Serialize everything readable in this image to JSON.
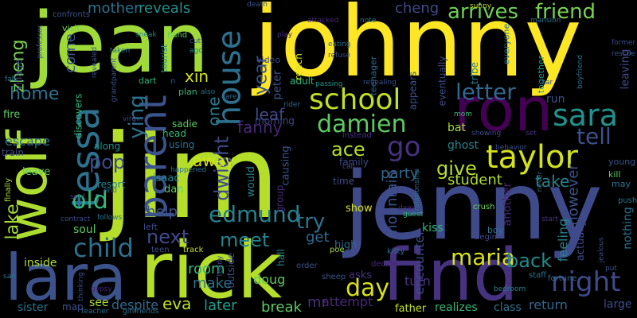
{
  "words": [
    {
      "text": "jim",
      "color": "#b5de2b"
    },
    {
      "text": "johnny",
      "color": "#fde725"
    },
    {
      "text": "jenny",
      "color": "#3e4a89"
    },
    {
      "text": "rick",
      "color": "#b5de2b"
    },
    {
      "text": "jean",
      "color": "#a0da39"
    },
    {
      "text": "find",
      "color": "#46327e"
    },
    {
      "text": "lara",
      "color": "#3b528b"
    },
    {
      "text": "ron",
      "color": "#440154"
    },
    {
      "text": "wolf",
      "color": "#addc30"
    },
    {
      "text": "parent",
      "color": "#3b528b"
    },
    {
      "text": "house",
      "color": "#2d708e"
    },
    {
      "text": "tessa",
      "color": "#2c728e"
    },
    {
      "text": "school",
      "color": "#c2df23"
    },
    {
      "text": "sara",
      "color": "#21918c"
    },
    {
      "text": "taylor",
      "color": "#d2e21b"
    },
    {
      "text": "night",
      "color": "#3e4a89"
    },
    {
      "text": "child",
      "color": "#2d708e"
    },
    {
      "text": "go",
      "color": "#46327e"
    },
    {
      "text": "day",
      "color": "#d8e219"
    },
    {
      "text": "maria",
      "color": "#d8e219"
    },
    {
      "text": "damien",
      "color": "#5ec962"
    },
    {
      "text": "letter",
      "color": "#31688e"
    },
    {
      "text": "edmund",
      "color": "#26828e"
    },
    {
      "text": "old",
      "color": "#35b779"
    },
    {
      "text": "arrives",
      "color": "#6ece58"
    },
    {
      "text": "friend",
      "color": "#7ad151"
    },
    {
      "text": "meet",
      "color": "#26828e"
    },
    {
      "text": "tell",
      "color": "#3b528b"
    },
    {
      "text": "next",
      "color": "#3e4a89"
    },
    {
      "text": "dwight",
      "color": "#3e4a89"
    },
    {
      "text": "try",
      "color": "#2c728e"
    },
    {
      "text": "ace",
      "color": "#b5de2b"
    },
    {
      "text": "pop",
      "color": "#3e4a89"
    },
    {
      "text": "ying",
      "color": "#2d708e"
    },
    {
      "text": "give",
      "color": "#b5de2b"
    },
    {
      "text": "back",
      "color": "#238a8d"
    },
    {
      "text": "year",
      "color": "#3b528b"
    },
    {
      "text": "home",
      "color": "#2c728e"
    },
    {
      "text": "mountain",
      "color": "#3b528b"
    },
    {
      "text": "lake",
      "color": "#a0da39"
    },
    {
      "text": "party",
      "color": "#31688e"
    },
    {
      "text": "zheng",
      "color": "#7ad151"
    },
    {
      "text": "later",
      "color": "#1f9e89"
    },
    {
      "text": "break",
      "color": "#5ec962"
    },
    {
      "text": "help",
      "color": "#3b528b"
    },
    {
      "text": "one",
      "color": "#2a788e"
    },
    {
      "text": "fanny",
      "color": "#482878"
    },
    {
      "text": "take",
      "color": "#26828e"
    },
    {
      "text": "leaf",
      "color": "#3e4a89"
    },
    {
      "text": "room",
      "color": "#35b779"
    },
    {
      "text": "make",
      "color": "#2c728e"
    },
    {
      "text": "eva",
      "color": "#c2df23"
    },
    {
      "text": "get",
      "color": "#31688e"
    },
    {
      "text": "away",
      "color": "#d2e21b"
    },
    {
      "text": "encounter",
      "color": "#3e4a89"
    },
    {
      "text": "student",
      "color": "#addc30"
    },
    {
      "text": "feeling",
      "color": "#26828e"
    },
    {
      "text": "however",
      "color": "#3b528b"
    },
    {
      "text": "mother",
      "color": "#2c728e"
    },
    {
      "text": "reveals",
      "color": "#21918c"
    },
    {
      "text": "cheng",
      "color": "#3e4a89"
    },
    {
      "text": "come",
      "color": "#3b528b"
    },
    {
      "text": "xin",
      "color": "#d8e219"
    },
    {
      "text": "peter",
      "color": "#3b528b"
    },
    {
      "text": "escape",
      "color": "#2d708e"
    },
    {
      "text": "doug",
      "color": "#5ec962"
    },
    {
      "text": "turn",
      "color": "#46327e"
    },
    {
      "text": "return",
      "color": "#31688e"
    },
    {
      "text": "large",
      "color": "#3e4a89"
    },
    {
      "text": "see",
      "color": "#addc30"
    },
    {
      "text": "despite",
      "color": "#31688e"
    },
    {
      "text": "mr",
      "color": "#46327e"
    },
    {
      "text": "attempt",
      "color": "#482878"
    },
    {
      "text": "sister",
      "color": "#2c728e"
    },
    {
      "text": "inside",
      "color": "#addc30"
    },
    {
      "text": "soul",
      "color": "#5ec962"
    },
    {
      "text": "ghost",
      "color": "#26828e"
    },
    {
      "text": "kiss",
      "color": "#35b779"
    },
    {
      "text": "tribe",
      "color": "#26828e"
    },
    {
      "text": "run",
      "color": "#3b528b"
    },
    {
      "text": "bat",
      "color": "#a0da39"
    },
    {
      "text": "leaving",
      "color": "#3e4a89"
    },
    {
      "text": "nothing",
      "color": "#2d708e"
    },
    {
      "text": "actually",
      "color": "#3e4a89"
    },
    {
      "text": "another",
      "color": "#482878"
    },
    {
      "text": "father",
      "color": "#c2df23"
    },
    {
      "text": "realizes",
      "color": "#35b779"
    },
    {
      "text": "class",
      "color": "#2c728e"
    },
    {
      "text": "asks",
      "color": "#46327e"
    },
    {
      "text": "high",
      "color": "#31688e"
    },
    {
      "text": "show",
      "color": "#d8e219"
    },
    {
      "text": "causing",
      "color": "#3b528b"
    },
    {
      "text": "group",
      "color": "#482878"
    },
    {
      "text": "would",
      "color": "#26828e"
    },
    {
      "text": "isaac",
      "color": "#26828e"
    },
    {
      "text": "dan",
      "color": "#5ec962"
    },
    {
      "text": "resort",
      "color": "#26828e"
    },
    {
      "text": "along",
      "color": "#21918c"
    },
    {
      "text": "train",
      "color": "#3e4a89"
    },
    {
      "text": "leave",
      "color": "#5ec962"
    },
    {
      "text": "fire",
      "color": "#5ec962"
    },
    {
      "text": "village",
      "color": "#3e4a89"
    },
    {
      "text": "discovers",
      "color": "#35b779"
    },
    {
      "text": "sadie",
      "color": "#5ec962"
    },
    {
      "text": "morning",
      "color": "#3e4a89"
    },
    {
      "text": "adult",
      "color": "#35b779"
    },
    {
      "text": "appears",
      "color": "#3b528b"
    },
    {
      "text": "eventually",
      "color": "#3e4a89"
    },
    {
      "text": "teenager",
      "color": "#31688e"
    },
    {
      "text": "everyone",
      "color": "#2c728e"
    },
    {
      "text": "together",
      "color": "#1f9e89"
    },
    {
      "text": "family",
      "color": "#3e4a89"
    },
    {
      "text": "using",
      "color": "#2d708e"
    },
    {
      "text": "head",
      "color": "#35b779"
    },
    {
      "text": "plan",
      "color": "#35b779"
    },
    {
      "text": "tourist",
      "color": "#26828e"
    },
    {
      "text": "dart",
      "color": "#35b779"
    },
    {
      "text": "visit",
      "color": "#6ece58"
    },
    {
      "text": "confronts",
      "color": "#3b528b"
    },
    {
      "text": "left",
      "color": "#3e4a89"
    },
    {
      "text": "time",
      "color": "#3e4a89"
    },
    {
      "text": "instead",
      "color": "#46327e"
    },
    {
      "text": "crush",
      "color": "#6ece58"
    },
    {
      "text": "boy",
      "color": "#2c728e"
    },
    {
      "text": "begin",
      "color": "#3e4a89"
    },
    {
      "text": "kitty",
      "color": "#31688e"
    },
    {
      "text": "staff",
      "color": "#2c728e"
    },
    {
      "text": "fortune",
      "color": "#31688e"
    },
    {
      "text": "young",
      "color": "#3b528b"
    },
    {
      "text": "kill",
      "color": "#5ec962"
    },
    {
      "text": "may",
      "color": "#2c728e"
    },
    {
      "text": "push",
      "color": "#2c728e"
    },
    {
      "text": "never",
      "color": "#2d708e"
    },
    {
      "text": "dawn",
      "color": "#482878"
    },
    {
      "text": "finally",
      "color": "#a0da39"
    },
    {
      "text": "sent",
      "color": "#46327e"
    },
    {
      "text": "contract",
      "color": "#3e4a89"
    },
    {
      "text": "follows",
      "color": "#2c728e"
    },
    {
      "text": "happened",
      "color": "#2d708e"
    },
    {
      "text": "teddy",
      "color": "#3e4a89"
    },
    {
      "text": "outside",
      "color": "#3e4a89"
    },
    {
      "text": "hall",
      "color": "#21918c"
    },
    {
      "text": "decide",
      "color": "#482878"
    },
    {
      "text": "order",
      "color": "#3b528b"
    },
    {
      "text": "sheep",
      "color": "#3b528b"
    },
    {
      "text": "poe",
      "color": "#a0da39"
    },
    {
      "text": "track",
      "color": "#c2df23"
    },
    {
      "text": "teen",
      "color": "#3b528b"
    },
    {
      "text": "cut",
      "color": "#3e4a89"
    },
    {
      "text": "ago",
      "color": "#26828e"
    },
    {
      "text": "taken",
      "color": "#2c728e"
    },
    {
      "text": "sneak",
      "color": "#26828e"
    },
    {
      "text": "death",
      "color": "#3b528b"
    },
    {
      "text": "video",
      "color": "#3e4a89"
    },
    {
      "text": "sunny",
      "color": "#c2df23"
    },
    {
      "text": "attacked",
      "color": "#482878"
    },
    {
      "text": "note",
      "color": "#2c728e"
    },
    {
      "text": "mansion",
      "color": "#2d708e"
    },
    {
      "text": "former",
      "color": "#3e4a89"
    },
    {
      "text": "rescue",
      "color": "#3b528b"
    },
    {
      "text": "reach",
      "color": "#d8e219"
    },
    {
      "text": "refuse",
      "color": "#3e4a89"
    },
    {
      "text": "eating",
      "color": "#2d708e"
    },
    {
      "text": "passing",
      "color": "#21918c"
    },
    {
      "text": "revealing",
      "color": "#3b528b"
    },
    {
      "text": "rider",
      "color": "#31688e"
    },
    {
      "text": "guest",
      "color": "#35b779"
    },
    {
      "text": "relationship",
      "color": "#2c728e"
    },
    {
      "text": "call",
      "color": "#3e4a89"
    },
    {
      "text": "behavior",
      "color": "#3b528b"
    },
    {
      "text": "set",
      "color": "#46327e"
    },
    {
      "text": "car",
      "color": "#3e4a89"
    },
    {
      "text": "boyfriend",
      "color": "#2d708e"
    },
    {
      "text": "start",
      "color": "#46327e"
    },
    {
      "text": "jealous",
      "color": "#3e4a89"
    },
    {
      "text": "put",
      "color": "#3b528b"
    },
    {
      "text": "bedroom",
      "color": "#26828e"
    },
    {
      "text": "professor",
      "color": "#3b528b"
    },
    {
      "text": "thinking",
      "color": "#3b528b"
    },
    {
      "text": "san",
      "color": "#2d708e"
    },
    {
      "text": "fall",
      "color": "#2c728e"
    },
    {
      "text": "map",
      "color": "#3b528b"
    },
    {
      "text": "teacher",
      "color": "#2c728e"
    },
    {
      "text": "gypsy",
      "color": "#482878"
    },
    {
      "text": "girlfriends",
      "color": "#2d708e"
    },
    {
      "text": "grandparent",
      "color": "#3b528b"
    },
    {
      "text": "hand",
      "color": "#5ec962"
    },
    {
      "text": "virgin",
      "color": "#3e4a89"
    },
    {
      "text": "also",
      "color": "#2d708e"
    },
    {
      "text": "care",
      "color": "#31688e"
    },
    {
      "text": "play",
      "color": "#46327e"
    },
    {
      "text": "end",
      "color": "#2c728e"
    },
    {
      "text": "showing",
      "color": "#3e4a89"
    },
    {
      "text": "mom",
      "color": "#35b779"
    },
    {
      "text": "n",
      "color": "#3b528b"
    },
    {
      "text": "revealed",
      "color": "#3b528b"
    }
  ]
}
